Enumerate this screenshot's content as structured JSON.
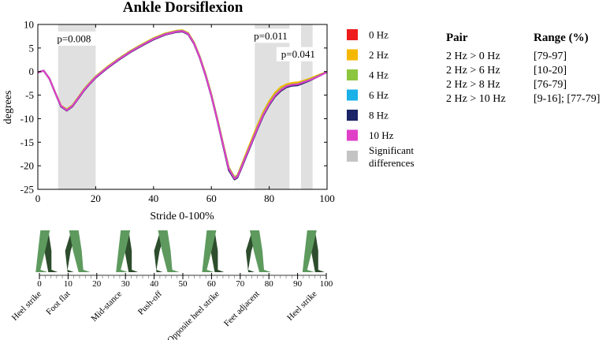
{
  "chart_data": {
    "type": "line",
    "title": "Ankle Dorsiflexion",
    "xlabel": "Stride 0-100%",
    "ylabel": "degrees",
    "xlim": [
      0,
      100
    ],
    "ylim": [
      -25,
      10
    ],
    "xticks": [
      0,
      20,
      40,
      60,
      80,
      100
    ],
    "yticks": [
      10,
      5,
      0,
      -5,
      -10,
      -15,
      -20,
      -25
    ],
    "grid": false,
    "legend_position": "right",
    "x": [
      0,
      2,
      4,
      6,
      8,
      10,
      12,
      14,
      16,
      18,
      20,
      24,
      28,
      32,
      36,
      40,
      44,
      48,
      50,
      52,
      54,
      56,
      58,
      60,
      62,
      64,
      66,
      68,
      69,
      70,
      72,
      74,
      76,
      78,
      80,
      82,
      84,
      86,
      88,
      90,
      92,
      94,
      96,
      98,
      100
    ],
    "series": [
      {
        "name": "0 Hz",
        "color": "#ee1c1c",
        "values": [
          -0.2,
          0.2,
          -1.5,
          -4.5,
          -7.3,
          -8.2,
          -7.3,
          -5.6,
          -3.9,
          -2.5,
          -1.2,
          0.8,
          2.6,
          4.2,
          5.6,
          6.9,
          7.9,
          8.5,
          8.6,
          8.0,
          6.0,
          3.0,
          -0.7,
          -5.0,
          -10.0,
          -15.3,
          -20.5,
          -22.6,
          -22.2,
          -20.8,
          -17.8,
          -14.8,
          -11.8,
          -9.0,
          -6.8,
          -5.0,
          -3.8,
          -3.1,
          -2.8,
          -2.7,
          -2.2,
          -1.7,
          -1.2,
          -0.6,
          -0.1
        ]
      },
      {
        "name": "2 Hz",
        "color": "#f5b800",
        "values": [
          -0.2,
          0.2,
          -1.5,
          -4.4,
          -7.2,
          -8.0,
          -7.1,
          -5.4,
          -3.7,
          -2.3,
          -1.0,
          1.0,
          2.8,
          4.4,
          5.8,
          7.1,
          8.1,
          8.7,
          8.8,
          8.2,
          6.2,
          3.2,
          -0.5,
          -4.8,
          -9.8,
          -15.1,
          -20.3,
          -22.4,
          -22.0,
          -20.5,
          -17.4,
          -14.3,
          -11.3,
          -8.5,
          -6.3,
          -4.5,
          -3.3,
          -2.7,
          -2.4,
          -2.3,
          -1.9,
          -1.5,
          -1.0,
          -0.5,
          -0.1
        ]
      },
      {
        "name": "4 Hz",
        "color": "#8cc63f",
        "values": [
          -0.2,
          0.2,
          -1.5,
          -4.5,
          -7.3,
          -8.1,
          -7.2,
          -5.5,
          -3.8,
          -2.4,
          -1.1,
          0.9,
          2.7,
          4.3,
          5.7,
          7.0,
          8.0,
          8.6,
          8.7,
          8.1,
          6.1,
          3.1,
          -0.6,
          -4.9,
          -9.9,
          -15.2,
          -20.4,
          -22.5,
          -22.1,
          -20.7,
          -17.7,
          -14.7,
          -11.7,
          -8.9,
          -6.7,
          -4.9,
          -3.7,
          -3.0,
          -2.7,
          -2.6,
          -2.1,
          -1.7,
          -1.2,
          -0.6,
          -0.1
        ]
      },
      {
        "name": "6 Hz",
        "color": "#1ab0e8",
        "values": [
          -0.2,
          0.2,
          -1.5,
          -4.5,
          -7.4,
          -8.2,
          -7.3,
          -5.6,
          -3.9,
          -2.5,
          -1.2,
          0.8,
          2.6,
          4.2,
          5.6,
          6.9,
          7.9,
          8.5,
          8.6,
          8.0,
          6.0,
          3.0,
          -0.8,
          -5.1,
          -10.1,
          -15.5,
          -20.7,
          -22.7,
          -22.3,
          -20.9,
          -18.0,
          -15.0,
          -12.0,
          -9.2,
          -7.0,
          -5.2,
          -4.0,
          -3.2,
          -2.9,
          -2.8,
          -2.3,
          -1.8,
          -1.3,
          -0.7,
          -0.1
        ]
      },
      {
        "name": "8 Hz",
        "color": "#1a2466",
        "values": [
          -0.2,
          0.2,
          -1.5,
          -4.5,
          -7.4,
          -8.3,
          -7.4,
          -5.7,
          -4.0,
          -2.6,
          -1.3,
          0.7,
          2.5,
          4.1,
          5.5,
          6.8,
          7.8,
          8.4,
          8.5,
          7.9,
          5.9,
          2.9,
          -0.9,
          -5.2,
          -10.2,
          -15.6,
          -20.9,
          -22.9,
          -22.5,
          -21.1,
          -18.1,
          -15.1,
          -12.1,
          -9.3,
          -7.1,
          -5.3,
          -4.1,
          -3.3,
          -3.0,
          -2.9,
          -2.4,
          -1.9,
          -1.3,
          -0.7,
          -0.1
        ]
      },
      {
        "name": "10 Hz",
        "color": "#e040c8",
        "values": [
          -0.2,
          0.2,
          -1.5,
          -4.5,
          -7.3,
          -8.2,
          -7.3,
          -5.6,
          -3.9,
          -2.5,
          -1.2,
          0.8,
          2.6,
          4.2,
          5.6,
          6.9,
          7.9,
          8.5,
          8.6,
          8.0,
          6.0,
          3.0,
          -0.8,
          -5.1,
          -10.1,
          -15.4,
          -20.6,
          -22.7,
          -22.3,
          -20.9,
          -17.9,
          -14.9,
          -11.9,
          -9.1,
          -6.9,
          -5.1,
          -3.9,
          -3.1,
          -2.8,
          -2.7,
          -2.2,
          -1.8,
          -1.3,
          -0.7,
          -0.1
        ]
      }
    ],
    "significant_regions": [
      [
        7,
        20
      ],
      [
        75,
        87
      ],
      [
        91,
        95
      ]
    ],
    "significance_legend_label": "Significant differences",
    "significance_color": "#e0e0e0",
    "annotations": [
      {
        "text": "p=0.008",
        "x": 12.5,
        "y": 7
      },
      {
        "text": "p=0.011",
        "x": 80.5,
        "y": 7.6
      },
      {
        "text": "p=0.041",
        "x": 90,
        "y": 3.7
      }
    ]
  },
  "gait_phases": {
    "ticks": [
      0,
      10,
      20,
      30,
      40,
      50,
      60,
      70,
      80,
      90,
      100
    ],
    "labels": [
      {
        "text": "Heel strike",
        "at": 0
      },
      {
        "text": "Foot flat",
        "at": 10
      },
      {
        "text": "Mid-stance",
        "at": 28
      },
      {
        "text": "Push-off",
        "at": 42
      },
      {
        "text": "Opposite heel strike",
        "at": 62
      },
      {
        "text": "Feet adjacent",
        "at": 76
      },
      {
        "text": "Heel strike",
        "at": 96
      }
    ],
    "figure_positions": [
      2,
      12,
      30,
      43,
      60,
      75,
      95
    ],
    "figure_color": "#5e9a5e",
    "figure_dark_color": "#2d4d2d"
  },
  "stats": {
    "header_pair": "Pair",
    "header_range": "Range (%)",
    "rows": [
      {
        "pair": "2 Hz > 0 Hz",
        "range": "[79-97]"
      },
      {
        "pair": "2 Hz > 6 Hz",
        "range": "[10-20]"
      },
      {
        "pair": "2 Hz > 8 Hz",
        "range": "[76-79]"
      },
      {
        "pair": "2 Hz > 10 Hz",
        "range": "[9-16]; [77-79]"
      }
    ]
  }
}
